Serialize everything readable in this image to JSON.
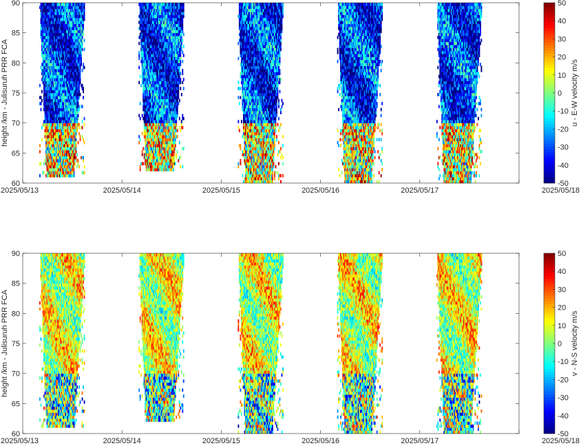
{
  "chart_data": [
    {
      "type": "heatmap",
      "ylabel": "height /km - Julisuruh PRR FCA",
      "colorbar_label": "u - E-W velocity m/s",
      "x_ticks": [
        "2025/05/13",
        "2025/05/14",
        "2025/05/15",
        "2025/05/16",
        "2025/05/17",
        "2025/05/18"
      ],
      "y_ticks": [
        "60",
        "65",
        "70",
        "75",
        "80",
        "85",
        "90"
      ],
      "colorbar_ticks": [
        "-50",
        "-40",
        "-30",
        "-20",
        "-10",
        "0",
        "10",
        "20",
        "30",
        "40",
        "50"
      ],
      "xlim": [
        "2025/05/13",
        "2025/05/18"
      ],
      "ylim": [
        60,
        90
      ],
      "clim": [
        -50,
        50
      ],
      "colormap": "jet",
      "coverage": [
        {
          "start": "2025/05/13 04:00",
          "end": "2025/05/13 15:00",
          "bottom_km": 61
        },
        {
          "start": "2025/05/14 04:00",
          "end": "2025/05/14 15:00",
          "bottom_km": 62
        },
        {
          "start": "2025/05/15 04:00",
          "end": "2025/05/15 15:00",
          "bottom_km": 60
        },
        {
          "start": "2025/05/16 04:00",
          "end": "2025/05/16 15:00",
          "bottom_km": 60
        },
        {
          "start": "2025/05/17 04:00",
          "end": "2025/05/17 15:00",
          "bottom_km": 60
        }
      ],
      "pattern": {
        "upper_mean_ms": -32,
        "lower_mean_ms": 10,
        "upper_above_km": 70,
        "upper_variation_ms": 22,
        "lower_variation_ms": 35
      }
    },
    {
      "type": "heatmap",
      "ylabel": "height /km - Julisuruh PRR FCA",
      "colorbar_label": "v - N-S velocity m/s",
      "x_ticks": [
        "2025/05/13",
        "2025/05/14",
        "2025/05/15",
        "2025/05/16",
        "2025/05/17",
        "2025/05/18"
      ],
      "y_ticks": [
        "60",
        "65",
        "70",
        "75",
        "80",
        "85",
        "90"
      ],
      "colorbar_ticks": [
        "-50",
        "-40",
        "-30",
        "-20",
        "-10",
        "0",
        "10",
        "20",
        "30",
        "40",
        "50"
      ],
      "xlim": [
        "2025/05/13",
        "2025/05/18"
      ],
      "ylim": [
        60,
        90
      ],
      "clim": [
        -50,
        50
      ],
      "colormap": "jet",
      "coverage": [
        {
          "start": "2025/05/13 04:00",
          "end": "2025/05/13 15:00",
          "bottom_km": 61
        },
        {
          "start": "2025/05/14 04:00",
          "end": "2025/05/14 15:00",
          "bottom_km": 62
        },
        {
          "start": "2025/05/15 04:00",
          "end": "2025/05/15 15:00",
          "bottom_km": 60
        },
        {
          "start": "2025/05/16 04:00",
          "end": "2025/05/16 15:00",
          "bottom_km": 60
        },
        {
          "start": "2025/05/17 04:00",
          "end": "2025/05/17 15:00",
          "bottom_km": 60
        }
      ],
      "pattern": {
        "upper_mean_ms": 8,
        "lower_mean_ms": -5,
        "upper_above_km": 70,
        "upper_variation_ms": 18,
        "lower_variation_ms": 35
      }
    }
  ]
}
